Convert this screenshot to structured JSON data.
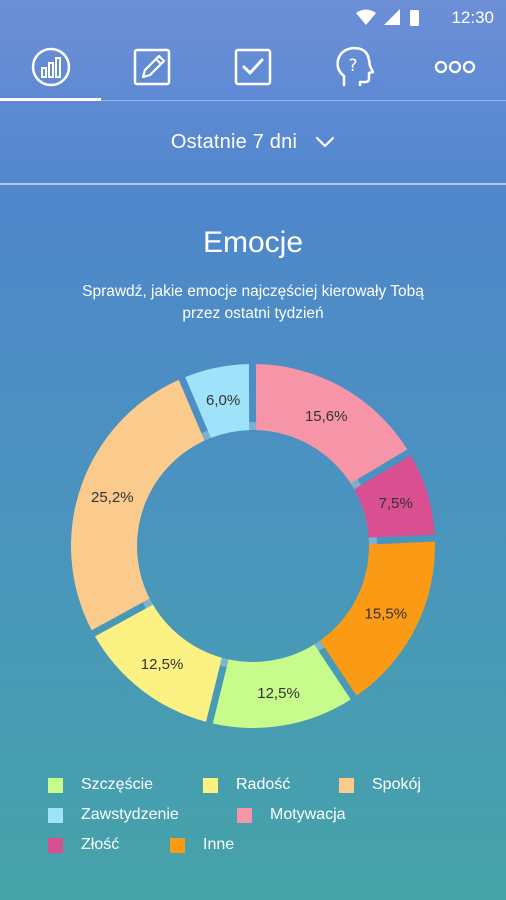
{
  "status_bar": {
    "time": "12:30"
  },
  "tabs": [
    {
      "name": "stats",
      "icon": "chart-progress-icon",
      "selected": true
    },
    {
      "name": "journal",
      "icon": "pencil-note-icon",
      "selected": false
    },
    {
      "name": "tasks",
      "icon": "checkbox-icon",
      "selected": false
    },
    {
      "name": "help",
      "icon": "head-question-icon",
      "selected": false
    },
    {
      "name": "more",
      "icon": "more-dots-icon",
      "selected": false
    }
  ],
  "period": {
    "label": "Ostatnie 7 dni"
  },
  "header": {
    "title": "Emocje",
    "subtitle": "Sprawdź, jakie emocje najczęściej kierowały Tobą przez ostatni tydzień"
  },
  "colors": {
    "Szczęście": "#c7fb8c",
    "Radość": "#fcf283",
    "Spokój": "#fbcb8e",
    "Zawstydzenie": "#9ee3fa",
    "Motywacja": "#f795a8",
    "Złość": "#d94f92",
    "Inne": "#fb9a14"
  },
  "chart_data": {
    "type": "pie",
    "title": "Emocje",
    "labels": [
      "Zawstydzenie",
      "Motywacja",
      "Złość",
      "Inne",
      "Szczęście",
      "Radość",
      "Spokój"
    ],
    "values": [
      6.0,
      15.6,
      7.5,
      15.5,
      12.5,
      12.5,
      25.2
    ],
    "value_labels": [
      "6,0%",
      "15,6%",
      "7,5%",
      "15,5%",
      "12,5%",
      "12,5%",
      "25,2%"
    ],
    "donut": true,
    "legend_position": "bottom"
  },
  "legend": [
    {
      "label": "Szczęście"
    },
    {
      "label": "Radość"
    },
    {
      "label": "Spokój"
    },
    {
      "label": "Zawstydzenie"
    },
    {
      "label": "Motywacja"
    },
    {
      "label": "Złość"
    },
    {
      "label": "Inne"
    }
  ]
}
